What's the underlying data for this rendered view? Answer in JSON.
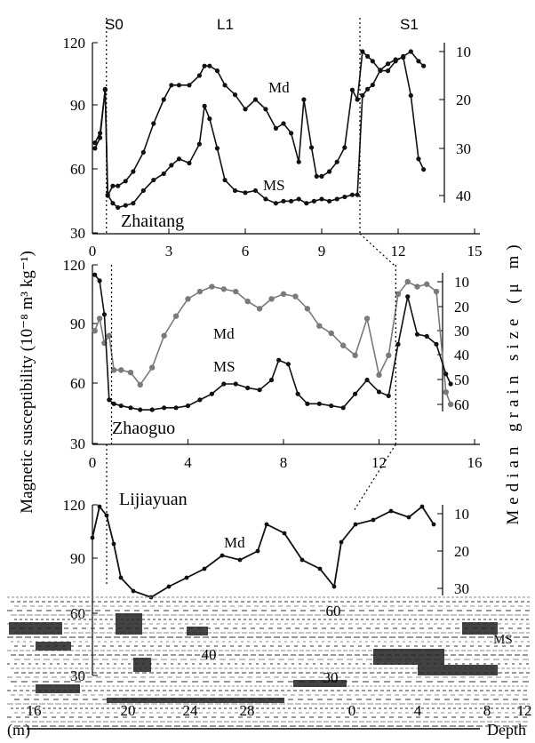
{
  "figure": {
    "y_axis_label": "Magnetic susceptibility (10⁻⁸ m³ kg⁻¹)",
    "y_axis_label_right": "Median grain size (μ m)",
    "unit_label": "(m)",
    "depth_label": "Depth"
  },
  "chart_data": [
    {
      "type": "line",
      "site": "Zhaitang",
      "units_strat": [
        "S0",
        "L1",
        "S1"
      ],
      "boundaries_x": [
        0.55,
        10.5
      ],
      "xlim": [
        0,
        15
      ],
      "x_ticks": [
        0,
        3,
        6,
        9,
        12,
        15
      ],
      "ylim": [
        30,
        120
      ],
      "y_ticks": [
        30,
        60,
        90,
        120
      ],
      "y2lim": [
        45,
        5
      ],
      "y2_ticks": [
        10,
        20,
        30,
        40
      ],
      "series": [
        {
          "name": "Md",
          "axis": "right",
          "x": [
            0.1,
            0.3,
            0.5,
            0.6,
            0.8,
            1.0,
            1.3,
            1.6,
            2.0,
            2.4,
            2.8,
            3.1,
            3.4,
            3.8,
            4.2,
            4.4,
            4.6,
            4.9,
            5.2,
            5.6,
            6.0,
            6.4,
            6.8,
            7.2,
            7.5,
            7.8,
            8.1,
            8.3,
            8.6,
            8.8,
            9.0,
            9.3,
            9.6,
            9.9,
            10.2,
            10.4,
            10.6,
            10.8,
            11.0,
            11.3,
            11.6,
            11.9,
            12.2,
            12.5,
            12.8,
            13.0
          ],
          "values": [
            29,
            27,
            18,
            40,
            38,
            38,
            37,
            35,
            31,
            25,
            20,
            17,
            17,
            17,
            15,
            13,
            13,
            14,
            17,
            19,
            22,
            20,
            22,
            26,
            25,
            27,
            33,
            20,
            30,
            36,
            36,
            35,
            33,
            30,
            18,
            20,
            10,
            11,
            12,
            14,
            14,
            12,
            11,
            10,
            12,
            13
          ]
        },
        {
          "name": "MS",
          "axis": "left",
          "x": [
            0.1,
            0.3,
            0.5,
            0.6,
            0.8,
            1.0,
            1.3,
            1.6,
            2.0,
            2.4,
            2.8,
            3.1,
            3.4,
            3.8,
            4.2,
            4.4,
            4.6,
            4.9,
            5.2,
            5.6,
            6.0,
            6.4,
            6.8,
            7.2,
            7.5,
            7.8,
            8.1,
            8.4,
            8.7,
            9.0,
            9.3,
            9.6,
            9.9,
            10.2,
            10.4,
            10.6,
            10.8,
            11.0,
            11.3,
            11.6,
            11.9,
            12.2,
            12.5,
            12.8,
            13.0
          ],
          "values": [
            70,
            75,
            98,
            48,
            44,
            42,
            43,
            44,
            50,
            55,
            58,
            62,
            65,
            63,
            72,
            90,
            84,
            70,
            55,
            50,
            49,
            50,
            46,
            44,
            45,
            45,
            46,
            44,
            45,
            46,
            45,
            46,
            47,
            48,
            48,
            95,
            98,
            100,
            107,
            110,
            112,
            113,
            95,
            65,
            60
          ]
        }
      ]
    },
    {
      "type": "line",
      "site": "Zhaoguo",
      "boundaries_x": [
        0.8,
        12.7
      ],
      "xlim": [
        0,
        16
      ],
      "x_ticks": [
        0,
        4,
        8,
        12,
        16
      ],
      "ylim": [
        30,
        120
      ],
      "y_ticks": [
        30,
        60,
        90,
        120
      ],
      "y2lim": [
        65,
        5
      ],
      "y2_ticks": [
        10,
        20,
        30,
        40,
        50,
        60
      ],
      "series": [
        {
          "name": "Md",
          "axis": "right",
          "x": [
            0.1,
            0.3,
            0.5,
            0.7,
            0.9,
            1.2,
            1.6,
            2.0,
            2.5,
            3.0,
            3.5,
            4.0,
            4.5,
            5.0,
            5.5,
            6.0,
            6.5,
            7.0,
            7.5,
            8.0,
            8.5,
            9.0,
            9.5,
            10.0,
            10.5,
            11.0,
            11.5,
            12.0,
            12.4,
            12.8,
            13.2,
            13.6,
            14.0,
            14.4,
            14.8,
            15.0
          ],
          "values": [
            30,
            25,
            35,
            32,
            46,
            46,
            47,
            52,
            45,
            32,
            24,
            17,
            14,
            12,
            13,
            14,
            18,
            21,
            17,
            15,
            16,
            21,
            28,
            31,
            36,
            40,
            25,
            48,
            40,
            15,
            10,
            12,
            11,
            14,
            55,
            60
          ]
        },
        {
          "name": "MS",
          "axis": "left",
          "x": [
            0.1,
            0.3,
            0.5,
            0.7,
            0.9,
            1.2,
            1.6,
            2.0,
            2.5,
            3.0,
            3.5,
            4.0,
            4.5,
            5.0,
            5.5,
            6.0,
            6.5,
            7.0,
            7.5,
            7.8,
            8.2,
            8.6,
            9.0,
            9.5,
            10.0,
            10.5,
            11.0,
            11.5,
            12.0,
            12.4,
            12.8,
            13.2,
            13.6,
            14.0,
            14.4,
            14.8,
            15.0
          ],
          "values": [
            115,
            112,
            95,
            52,
            50,
            49,
            48,
            47,
            47,
            48,
            48,
            49,
            52,
            55,
            60,
            60,
            58,
            57,
            62,
            72,
            70,
            55,
            50,
            50,
            49,
            48,
            55,
            62,
            56,
            54,
            80,
            104,
            85,
            84,
            80,
            65,
            60
          ]
        }
      ]
    },
    {
      "type": "line",
      "site": "Lijiayuan",
      "ylim": [
        30,
        120
      ],
      "y_ticks": [
        30,
        60,
        90,
        120
      ],
      "y2_ticks": [
        10,
        20,
        30
      ],
      "x_ticks_visible": [
        "16",
        "20",
        "24",
        "28",
        "0",
        "4",
        "8",
        "12"
      ],
      "series": [
        {
          "name": "Md",
          "label_visible": true
        },
        {
          "name": "MS",
          "label_visible": true
        }
      ]
    }
  ]
}
